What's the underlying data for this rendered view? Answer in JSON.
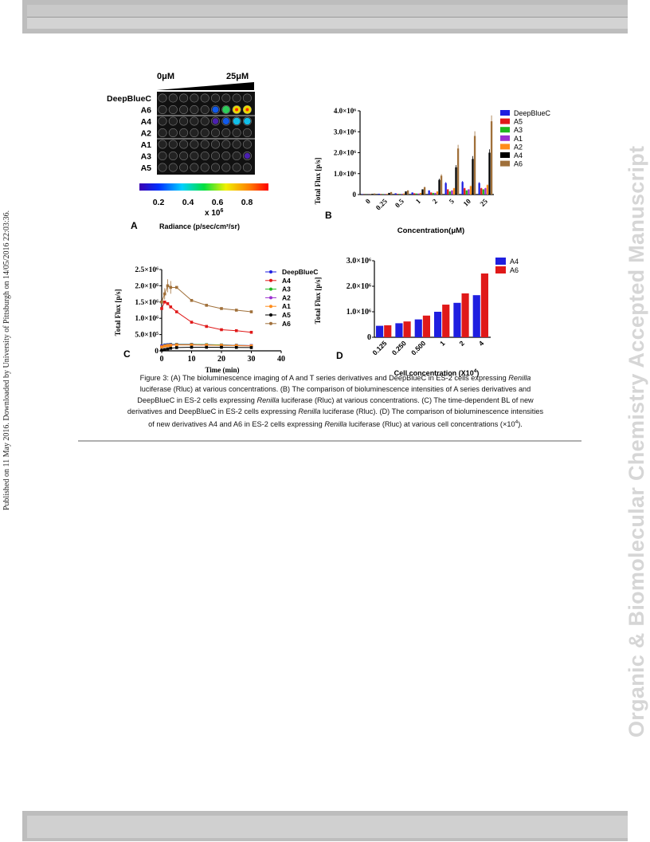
{
  "watermark_left": "Published on 11 May 2016. Downloaded by University of Pittsburgh on 14/05/2016 22:03:36.",
  "watermark_right": "Organic & Biomolecular Chemistry Accepted Manuscript",
  "panelA": {
    "label": "A",
    "conc_low": "0μM",
    "conc_high": "25μM",
    "rows": [
      "DeepBlueC",
      "A6",
      "A4",
      "A2",
      "A1",
      "A3",
      "A5"
    ],
    "colorbar_ticks": [
      "0.2",
      "0.4",
      "0.6",
      "0.8"
    ],
    "scale": "x 10",
    "scale_exp": "6",
    "radiance_label": "Radiance (p/sec/cm²/sr)",
    "intensity": {
      "A6": [
        0,
        0,
        0,
        0,
        0,
        0.25,
        0.55,
        0.7,
        0.8
      ],
      "A4": [
        0,
        0,
        0,
        0,
        0,
        0.1,
        0.3,
        0.45,
        0.4
      ],
      "A3": [
        0,
        0,
        0,
        0,
        0,
        0,
        0,
        0,
        0.05
      ]
    }
  },
  "panelB": {
    "label": "B",
    "ylabel": "Total Flux [p/s]",
    "xlabel": "Concentration(μM)",
    "yticks": [
      "0",
      "1.0×10⁶",
      "2.0×10⁶",
      "3.0×10⁶",
      "4.0×10⁶"
    ],
    "legend": [
      "DeepBlueC",
      "A5",
      "A3",
      "A1",
      "A2",
      "A4",
      "A6"
    ]
  },
  "panelC": {
    "label": "C",
    "ylabel": "Total Flux [p/s]",
    "xlabel": "Time (min)",
    "yticks": [
      "0",
      "5.0×10⁵",
      "1.0×10⁶",
      "1.5×10⁶",
      "2.0×10⁶",
      "2.5×10⁶"
    ],
    "xticks": [
      "0",
      "10",
      "20",
      "30",
      "40"
    ],
    "legend": [
      "DeepBlueC",
      "A4",
      "A3",
      "A2",
      "A1",
      "A5",
      "A6"
    ]
  },
  "panelD": {
    "label": "D",
    "ylabel": "Total Flux [p/s]",
    "xlabel": "Cell concentration (X10",
    "xlabel_exp": "4",
    "xlabel_end": ")",
    "yticks": [
      "0",
      "1.0×10⁶",
      "2.0×10⁶",
      "3.0×10⁶"
    ],
    "legend": [
      "A4",
      "A6"
    ]
  },
  "chart_data": [
    {
      "type": "bar",
      "categories": [
        "0",
        "0.25",
        "0.5",
        "1",
        "2",
        "5",
        "10",
        "25"
      ],
      "ylim": [
        0,
        4000000
      ],
      "series": [
        {
          "name": "DeepBlueC",
          "color": "#1f1fe0",
          "values": [
            20000,
            40000,
            60000,
            100000,
            200000,
            550000,
            600000,
            550000
          ]
        },
        {
          "name": "A5",
          "color": "#e01919",
          "values": [
            10000,
            20000,
            30000,
            60000,
            100000,
            250000,
            300000,
            300000
          ]
        },
        {
          "name": "A3",
          "color": "#1fb81f",
          "values": [
            10000,
            20000,
            30000,
            50000,
            80000,
            150000,
            200000,
            250000
          ]
        },
        {
          "name": "A1",
          "color": "#9b30d0",
          "values": [
            10000,
            20000,
            30000,
            50000,
            80000,
            200000,
            250000,
            300000
          ]
        },
        {
          "name": "A2",
          "color": "#ff8c1a",
          "values": [
            10000,
            30000,
            50000,
            80000,
            150000,
            300000,
            400000,
            450000
          ]
        },
        {
          "name": "A4",
          "color": "#000000",
          "values": [
            30000,
            80000,
            150000,
            250000,
            700000,
            1300000,
            1700000,
            2000000
          ]
        },
        {
          "name": "A6",
          "color": "#a0703a",
          "values": [
            50000,
            120000,
            200000,
            350000,
            900000,
            2200000,
            2800000,
            3500000
          ]
        }
      ]
    },
    {
      "type": "line",
      "x": [
        0,
        1,
        2,
        3,
        5,
        10,
        15,
        20,
        25,
        30
      ],
      "xlim": [
        0,
        40
      ],
      "ylim": [
        0,
        2500000
      ],
      "series": [
        {
          "name": "DeepBlueC",
          "color": "#1f1fe0",
          "values": [
            150000,
            180000,
            190000,
            200000,
            200000,
            200000,
            190000,
            180000,
            170000,
            160000
          ]
        },
        {
          "name": "A4",
          "color": "#e01919",
          "values": [
            1300000,
            1500000,
            1450000,
            1350000,
            1200000,
            880000,
            750000,
            650000,
            620000,
            570000
          ]
        },
        {
          "name": "A3",
          "color": "#1fb81f",
          "values": [
            130000,
            160000,
            180000,
            190000,
            200000,
            200000,
            190000,
            180000,
            170000,
            160000
          ]
        },
        {
          "name": "A2",
          "color": "#9b30d0",
          "values": [
            130000,
            150000,
            170000,
            180000,
            190000,
            190000,
            180000,
            170000,
            165000,
            160000
          ]
        },
        {
          "name": "A1",
          "color": "#ff8c1a",
          "values": [
            120000,
            150000,
            160000,
            170000,
            180000,
            180000,
            175000,
            170000,
            160000,
            150000
          ]
        },
        {
          "name": "A5",
          "color": "#000000",
          "values": [
            20000,
            40000,
            60000,
            80000,
            100000,
            110000,
            110000,
            110000,
            105000,
            100000
          ]
        },
        {
          "name": "A6",
          "color": "#a0703a",
          "values": [
            1500000,
            1750000,
            2000000,
            1950000,
            1950000,
            1550000,
            1400000,
            1300000,
            1250000,
            1200000
          ]
        }
      ]
    },
    {
      "type": "bar",
      "categories": [
        "0.125",
        "0.250",
        "0.500",
        "1",
        "2",
        "4"
      ],
      "ylim": [
        0,
        3000000
      ],
      "series": [
        {
          "name": "A4",
          "color": "#1f1fe0",
          "values": [
            450000,
            550000,
            700000,
            1000000,
            1350000,
            1650000
          ]
        },
        {
          "name": "A6",
          "color": "#e01919",
          "values": [
            470000,
            620000,
            850000,
            1280000,
            1720000,
            2500000
          ]
        }
      ]
    }
  ],
  "caption": {
    "l1a": "Figure 3: (A) The bioluminescence imaging of A and T series derivatives and DeepBlueC in ES-2 cells expressing ",
    "l1i": "Renilla",
    "l2": "luciferase (Rluc) at various concentrations. (B) The comparison of bioluminescence intensities of A series derivatives and",
    "l3a": "DeepBlueC in ES-2 cells expressing ",
    "l3i": "Renilla",
    "l3b": " luciferase (Rluc) at various concentrations. (C) The time-dependent BL of new",
    "l4a": "derivatives and DeepBlueC in ES-2 cells expressing ",
    "l4i": "Renilla",
    "l4b": " luciferase (Rluc). (D) The comparison of bioluminescence intensities",
    "l5a": "of new derivatives A4 and A6 in ES-2 cells expressing ",
    "l5i": "Renilla",
    "l5b": " luciferase (Rluc) at various cell concentrations (×10",
    "l5sup": "4",
    "l5c": ")."
  }
}
